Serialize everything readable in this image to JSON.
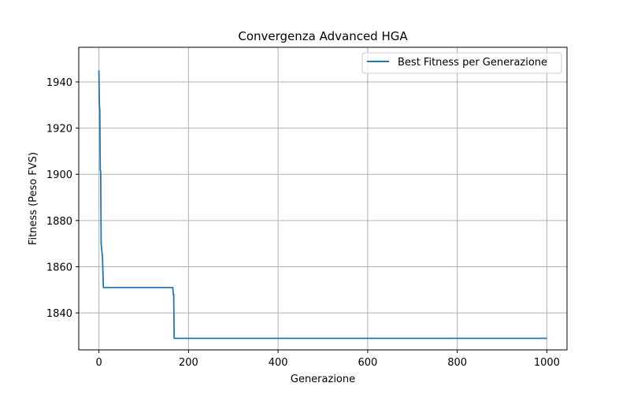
{
  "chart_data": {
    "type": "line",
    "title": "Convergenza Advanced HGA",
    "xlabel": "Generazione",
    "ylabel": "Fitness (Peso FVS)",
    "xlim": [
      -45,
      1045
    ],
    "ylim": [
      1824,
      1955
    ],
    "xticks": [
      0,
      200,
      400,
      600,
      800,
      1000
    ],
    "yticks": [
      1840,
      1860,
      1880,
      1900,
      1920,
      1940
    ],
    "grid": true,
    "legend_position": "top-right",
    "series": [
      {
        "name": "Best Fitness per Generazione",
        "color": "#1f77b4",
        "x": [
          0,
          1,
          2,
          3,
          4,
          5,
          6,
          8,
          10,
          12,
          165,
          166,
          167,
          168,
          169,
          1000
        ],
        "y": [
          1945,
          1930,
          1928,
          1902,
          1901,
          1870,
          1868,
          1864,
          1851,
          1851,
          1851,
          1848,
          1848,
          1829,
          1829,
          1829
        ]
      }
    ]
  }
}
